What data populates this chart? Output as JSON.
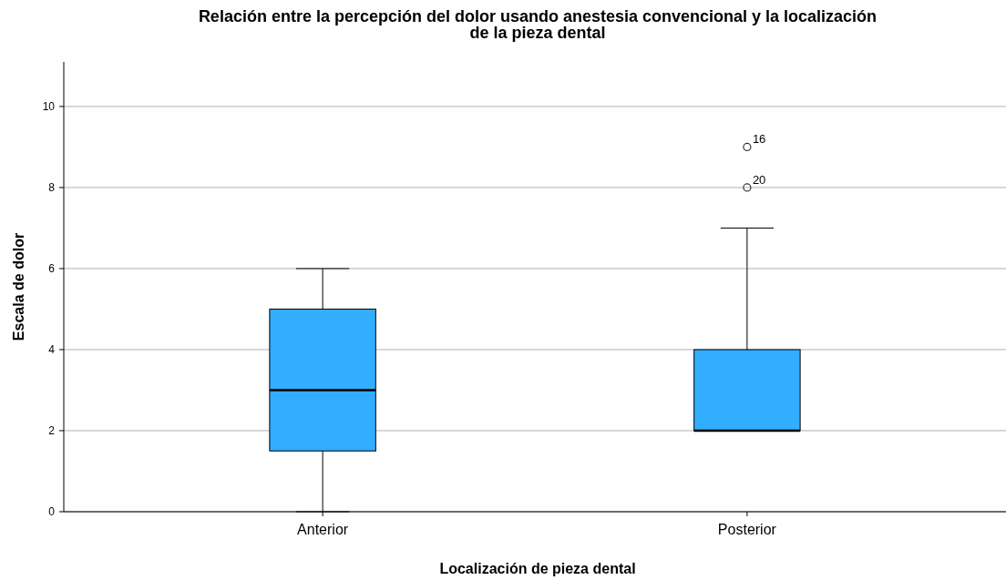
{
  "chart_data": {
    "type": "box",
    "title": "Relación entre la percepción del dolor usando anestesia convencional y la localización de la pieza dental",
    "xlabel": "Localización de pieza dental",
    "ylabel": "Escala de dolor",
    "categories": [
      "Anterior",
      "Posterior"
    ],
    "color": "#33adff",
    "boxes": [
      {
        "low": 0,
        "q1": 1.5,
        "median": 3,
        "q3": 5,
        "high": 6
      },
      {
        "low": 2,
        "q1": 2,
        "median": 2,
        "q3": 4,
        "high": 7,
        "outliers": [
          9,
          8
        ]
      }
    ],
    "ylim": [
      0,
      11.1
    ],
    "yticks": [
      0,
      2,
      4,
      6,
      8,
      10
    ],
    "grid": "y",
    "marker": "circle",
    "annotations": [
      "16",
      "20"
    ]
  }
}
